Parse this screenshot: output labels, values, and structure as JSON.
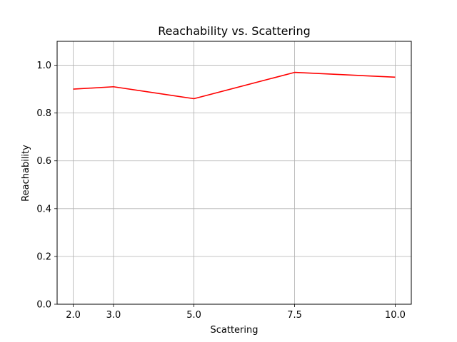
{
  "chart_data": {
    "type": "line",
    "title": "Reachability vs. Scattering",
    "xlabel": "Scattering",
    "ylabel": "Reachability",
    "x": [
      2.0,
      3.0,
      5.0,
      7.5,
      10.0
    ],
    "x_tick_labels": [
      "2.0",
      "3.0",
      "5.0",
      "7.5",
      "10.0"
    ],
    "y_ticks": [
      0.0,
      0.2,
      0.4,
      0.6,
      0.8,
      1.0
    ],
    "y_tick_labels": [
      "0.0",
      "0.2",
      "0.4",
      "0.6",
      "0.8",
      "1.0"
    ],
    "xlim": [
      1.6,
      10.4
    ],
    "ylim": [
      0.0,
      1.1
    ],
    "grid": true,
    "series": [
      {
        "name": "Reachability",
        "color": "#ff0000",
        "values": [
          0.9,
          0.91,
          0.86,
          0.97,
          0.95
        ]
      }
    ]
  }
}
